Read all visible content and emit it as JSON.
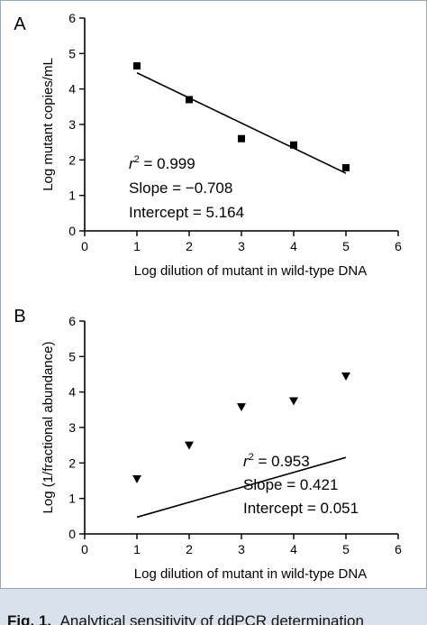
{
  "caption": {
    "label": "Fig. 1.",
    "text": "Analytical sensitivity of ddPCR determination"
  },
  "chart_data": [
    {
      "type": "scatter",
      "panel_label": "A",
      "xlabel": "Log dilution of mutant in wild-type DNA",
      "ylabel": "Log mutant copies/mL",
      "xlim": [
        0,
        6
      ],
      "ylim": [
        0,
        6
      ],
      "xticks": [
        "0",
        "1",
        "2",
        "3",
        "4",
        "5",
        "6"
      ],
      "yticks": [
        "0",
        "1",
        "2",
        "3",
        "4",
        "5",
        "6"
      ],
      "grid": false,
      "marker": "square",
      "x": [
        1,
        2,
        3,
        4,
        5
      ],
      "y": [
        4.65,
        3.7,
        2.6,
        2.42,
        1.78
      ],
      "fit": {
        "slope": -0.708,
        "intercept": 5.164
      },
      "annotations": [
        "r² = 0.999",
        "Slope = −0.708",
        "Intercept = 5.164"
      ]
    },
    {
      "type": "scatter",
      "panel_label": "B",
      "xlabel": "Log dilution of mutant in wild-type DNA",
      "ylabel": "Log (1/fractional abundance)",
      "xlim": [
        0,
        6
      ],
      "ylim": [
        0,
        6
      ],
      "xticks": [
        "0",
        "1",
        "2",
        "3",
        "4",
        "5",
        "6"
      ],
      "yticks": [
        "0",
        "1",
        "2",
        "3",
        "4",
        "5",
        "6"
      ],
      "grid": false,
      "marker": "triangle-down",
      "x": [
        1,
        2,
        3,
        4,
        5
      ],
      "y": [
        1.55,
        2.5,
        3.58,
        3.75,
        4.45
      ],
      "fit": {
        "slope": 0.421,
        "intercept": 0.051
      },
      "annotations": [
        "r² = 0.953",
        "Slope = 0.421",
        "Intercept = 0.051"
      ]
    }
  ]
}
